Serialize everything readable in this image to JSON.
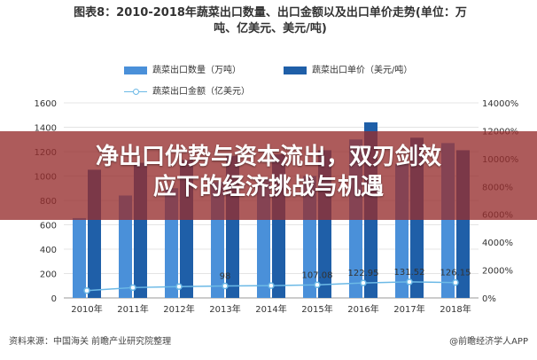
{
  "title_line1": "图表8：2010-2018年蔬菜出口数量、出口金额以及出口单价走势(单位：万",
  "title_line2": "吨、亿美元、美元/吨)",
  "headline_line1": "净出口优势与资本流出，双刃剑效",
  "headline_line2": "应下的经济挑战与机遇",
  "source": "资料来源：中国海关 前瞻产业研究院整理",
  "brand": "@前瞻经济学人APP",
  "colors": {
    "bar_qty": "#4a90d9",
    "bar_price": "#1f5fa8",
    "line": "#6cb9e6"
  },
  "chart_data": {
    "type": "bar",
    "categories": [
      "2010年",
      "2011年",
      "2012年",
      "2013年",
      "2014年",
      "2015年",
      "2016年",
      "2017年",
      "2018年"
    ],
    "series": [
      {
        "name": "蔬菜出口数量（万吨）",
        "type": "bar",
        "axis": "left",
        "values": [
          655,
          840,
          900,
          950,
          980,
          1000,
          1300,
          1100,
          1270
        ]
      },
      {
        "name": "蔬菜出口单价（美元/吨）",
        "type": "bar",
        "axis": "right",
        "values": [
          9200,
          9700,
          9900,
          10200,
          10300,
          10600,
          12600,
          11500,
          10600
        ]
      },
      {
        "name": "蔬菜出口金额（亿美元）",
        "type": "line",
        "axis": "left",
        "values": [
          60,
          85,
          93,
          98,
          101,
          107.08,
          122.95,
          131.52,
          126.15
        ]
      }
    ],
    "data_labels": {
      "2010年": "655",
      "2013年": "98",
      "2015年": "107.08",
      "2016年": "122.95",
      "2017年": "131.52",
      "2018年": "126.15"
    },
    "y_left": {
      "ylim": [
        0,
        1600
      ],
      "ticks": [
        "0",
        "200",
        "400",
        "600",
        "800",
        "1000",
        "1200",
        "1400",
        "1600"
      ]
    },
    "y_right": {
      "ylim": [
        0,
        14000
      ],
      "ticks": [
        "0%",
        "2000%",
        "4000%",
        "6000%",
        "8000%",
        "10000%",
        "12000%",
        "14000%"
      ]
    },
    "legend_position": "top",
    "grid": true
  }
}
